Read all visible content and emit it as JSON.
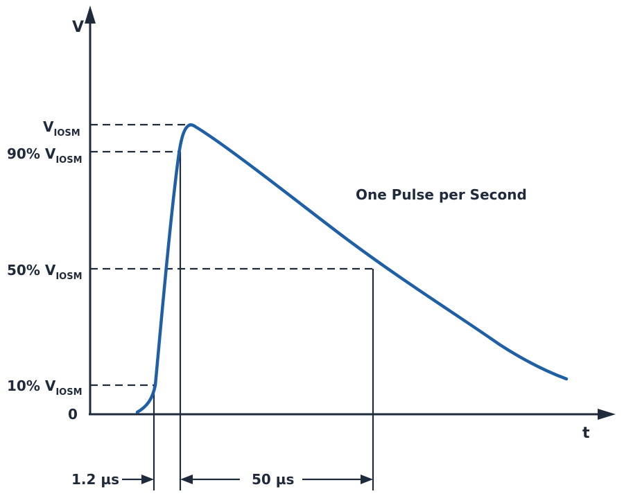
{
  "axes": {
    "y_label": "V",
    "x_label": "t",
    "origin_label": "0"
  },
  "levels": {
    "v_iosm": {
      "main": "V",
      "sub": "IOSM"
    },
    "p90": {
      "prefix": "90% ",
      "main": "V",
      "sub": "IOSM"
    },
    "p50": {
      "prefix": "50% ",
      "main": "V",
      "sub": "IOSM"
    },
    "p10": {
      "prefix": "10% ",
      "main": "V",
      "sub": "IOSM"
    }
  },
  "annotation": "One Pulse per Second",
  "timing": {
    "rise": "1.2 µs",
    "decay": "50 µs"
  },
  "colors": {
    "curve": "#1f5fa6",
    "lines": "#1f2a3a"
  }
}
